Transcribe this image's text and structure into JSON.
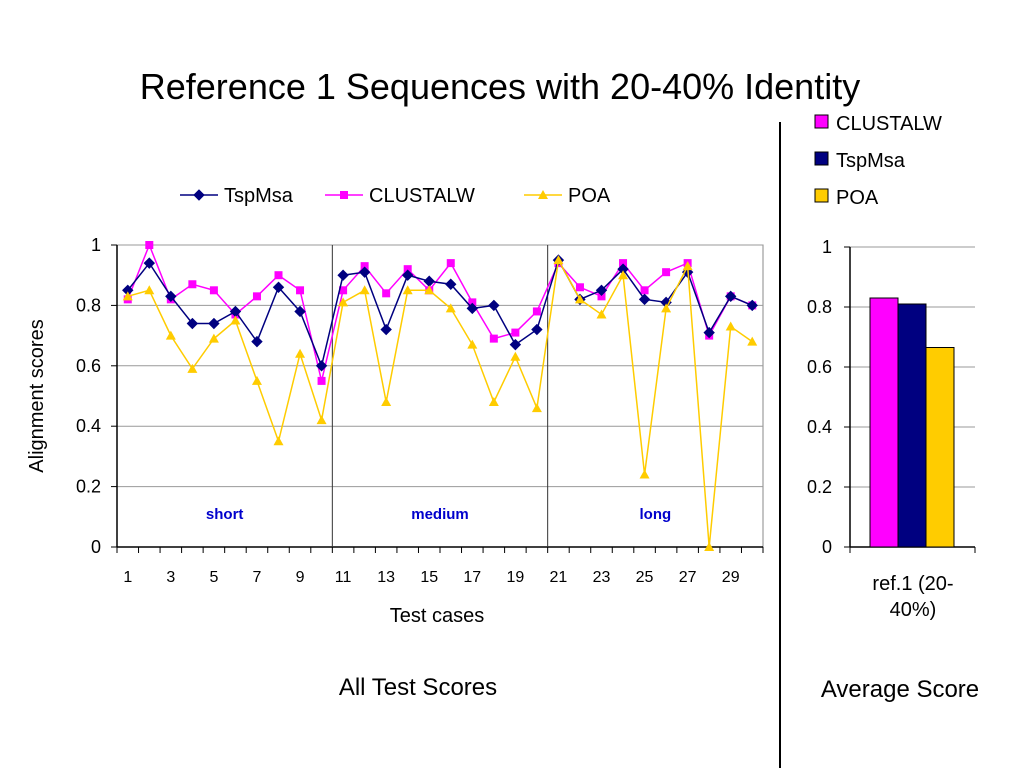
{
  "page": {
    "title": "Reference 1 Sequences with 20-40% Identity",
    "left_caption": "All Test Scores",
    "right_caption": "Average Score"
  },
  "chart_data": [
    {
      "type": "line",
      "xlabel": "Test cases",
      "ylabel": "Alignment scores",
      "x": [
        1,
        2,
        3,
        4,
        5,
        6,
        7,
        8,
        9,
        10,
        11,
        12,
        13,
        14,
        15,
        16,
        17,
        18,
        19,
        20,
        21,
        22,
        23,
        24,
        25,
        26,
        27,
        28,
        29,
        30
      ],
      "xtick_labels": [
        "1",
        "3",
        "5",
        "7",
        "9",
        "11",
        "13",
        "15",
        "17",
        "19",
        "21",
        "23",
        "25",
        "27",
        "29"
      ],
      "ylim": [
        0,
        1
      ],
      "yticks": [
        "0",
        "0.2",
        "0.4",
        "0.6",
        "0.8",
        "1"
      ],
      "grid": "horizontal",
      "legend_position": "top",
      "section_labels": [
        "short",
        "medium",
        "long"
      ],
      "series": [
        {
          "name": "TspMsa",
          "color": "#000080",
          "marker": "diamond",
          "values": [
            0.85,
            0.94,
            0.83,
            0.74,
            0.74,
            0.78,
            0.68,
            0.86,
            0.78,
            0.6,
            0.9,
            0.91,
            0.72,
            0.9,
            0.88,
            0.87,
            0.79,
            0.8,
            0.67,
            0.72,
            0.95,
            0.82,
            0.85,
            0.92,
            0.82,
            0.81,
            0.91,
            0.71,
            0.83,
            0.8
          ]
        },
        {
          "name": "CLUSTALW",
          "color": "#ff00ff",
          "marker": "square",
          "values": [
            0.82,
            1.0,
            0.82,
            0.87,
            0.85,
            0.77,
            0.83,
            0.9,
            0.85,
            0.55,
            0.85,
            0.93,
            0.84,
            0.92,
            0.85,
            0.94,
            0.81,
            0.69,
            0.71,
            0.78,
            0.94,
            0.86,
            0.83,
            0.94,
            0.85,
            0.91,
            0.94,
            0.7,
            0.83,
            0.8
          ]
        },
        {
          "name": "POA",
          "color": "#ffcc00",
          "marker": "triangle",
          "values": [
            0.83,
            0.85,
            0.7,
            0.59,
            0.69,
            0.75,
            0.55,
            0.35,
            0.64,
            0.42,
            0.81,
            0.85,
            0.48,
            0.85,
            0.85,
            0.79,
            0.67,
            0.48,
            0.63,
            0.46,
            0.95,
            0.82,
            0.77,
            0.9,
            0.24,
            0.79,
            0.93,
            0.0,
            0.73,
            0.68
          ]
        }
      ]
    },
    {
      "type": "bar",
      "categories": [
        "ref.1 (20-40%)"
      ],
      "category_label_lines": [
        "ref.1 (20-",
        "40%)"
      ],
      "ylim": [
        0,
        1
      ],
      "yticks": [
        "0",
        "0.2",
        "0.4",
        "0.6",
        "0.8",
        "1"
      ],
      "grid": "horizontal",
      "legend_position": "top-right",
      "series": [
        {
          "name": "CLUSTALW",
          "color": "#ff00ff",
          "values": [
            0.83
          ]
        },
        {
          "name": "TspMsa",
          "color": "#000080",
          "values": [
            0.81
          ]
        },
        {
          "name": "POA",
          "color": "#ffcc00",
          "values": [
            0.665
          ]
        }
      ]
    }
  ]
}
